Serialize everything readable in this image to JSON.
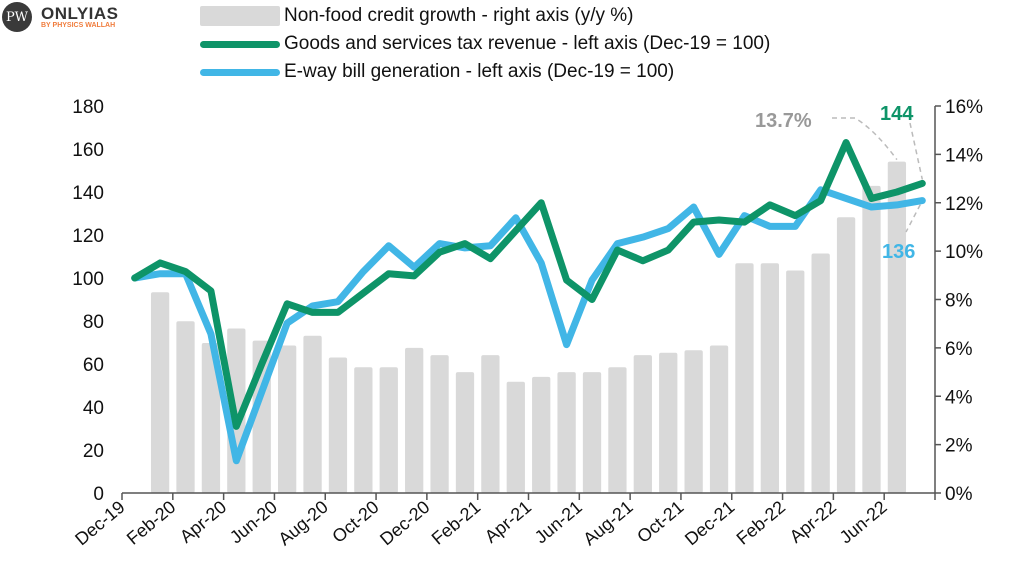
{
  "logo": {
    "mark": "PW",
    "name": "ONLYIAS",
    "sub": "BY PHYSICS WALLAH"
  },
  "legend": [
    {
      "label": "Non-food credit growth - right axis (y/y %)",
      "color": "#d9d9d9",
      "kind": "bar"
    },
    {
      "label": "Goods and services tax revenue - left axis (Dec-19 = 100)",
      "color": "#0e9468",
      "kind": "line"
    },
    {
      "label": "E-way bill generation - left axis (Dec-19 = 100)",
      "color": "#41b6e6",
      "kind": "line"
    }
  ],
  "chart_data": {
    "type": "bar+line",
    "categories": [
      "Dec-19",
      "Jan-20",
      "Feb-20",
      "Mar-20",
      "Apr-20",
      "May-20",
      "Jun-20",
      "Jul-20",
      "Aug-20",
      "Sep-20",
      "Oct-20",
      "Nov-20",
      "Dec-20",
      "Jan-21",
      "Feb-21",
      "Mar-21",
      "Apr-21",
      "May-21",
      "Jun-21",
      "Jul-21",
      "Aug-21",
      "Sep-21",
      "Oct-21",
      "Nov-21",
      "Dec-21",
      "Jan-22",
      "Feb-22",
      "Mar-22",
      "Apr-22",
      "May-22",
      "Jun-22",
      "Jul-22"
    ],
    "x_tick_labels": [
      "Dec-19",
      "Feb-20",
      "Apr-20",
      "Jun-20",
      "Aug-20",
      "Oct-20",
      "Dec-20",
      "Feb-21",
      "Apr-21",
      "Jun-21",
      "Aug-21",
      "Oct-21",
      "Dec-21",
      "Feb-22",
      "Apr-22",
      "Jun-22"
    ],
    "left_axis": {
      "ylim": [
        0,
        180
      ],
      "ticks": [
        "0",
        "20",
        "40",
        "60",
        "80",
        "100",
        "120",
        "140",
        "160",
        "180"
      ]
    },
    "right_axis": {
      "ylim": [
        0,
        16
      ],
      "ticks": [
        "0%",
        "2%",
        "4%",
        "6%",
        "8%",
        "10%",
        "12%",
        "14%",
        "16%"
      ]
    },
    "series": [
      {
        "name": "Non-food credit growth - right axis (y/y %)",
        "type": "bar",
        "axis": "right",
        "color": "#d9d9d9",
        "values": [
          null,
          8.3,
          7.1,
          6.2,
          6.8,
          6.3,
          6.1,
          6.5,
          5.6,
          5.2,
          5.2,
          6.0,
          5.7,
          5.0,
          5.7,
          4.6,
          4.8,
          5.0,
          5.0,
          5.2,
          5.7,
          5.8,
          5.9,
          6.1,
          9.5,
          9.5,
          9.2,
          9.9,
          11.4,
          12.7,
          13.7,
          null
        ]
      },
      {
        "name": "Goods and services tax revenue - left axis (Dec-19 = 100)",
        "type": "line",
        "axis": "left",
        "color": "#0e9468",
        "values": [
          100,
          107,
          103,
          94,
          31,
          60,
          88,
          84,
          84,
          93,
          102,
          101,
          112,
          116,
          109,
          122,
          135,
          99,
          90,
          113,
          108,
          113,
          126,
          127,
          126,
          134,
          129,
          136,
          163,
          137,
          140,
          144
        ]
      },
      {
        "name": "E-way bill generation - left axis (Dec-19 = 100)",
        "type": "line",
        "axis": "left",
        "color": "#41b6e6",
        "values": [
          100,
          102,
          102,
          74,
          15,
          47,
          79,
          87,
          89,
          103,
          115,
          105,
          116,
          114,
          115,
          128,
          107,
          69,
          99,
          116,
          119,
          123,
          133,
          111,
          129,
          124,
          124,
          141,
          137,
          133,
          134,
          136
        ]
      }
    ],
    "annotations": [
      {
        "text": "13.7%",
        "color": "#999999",
        "target": "Jun-22 bar"
      },
      {
        "text": "144",
        "color": "#0e9468",
        "target": "Jul-22 GST"
      },
      {
        "text": "136",
        "color": "#41b6e6",
        "target": "Jul-22 E-way"
      }
    ],
    "grid": false
  }
}
